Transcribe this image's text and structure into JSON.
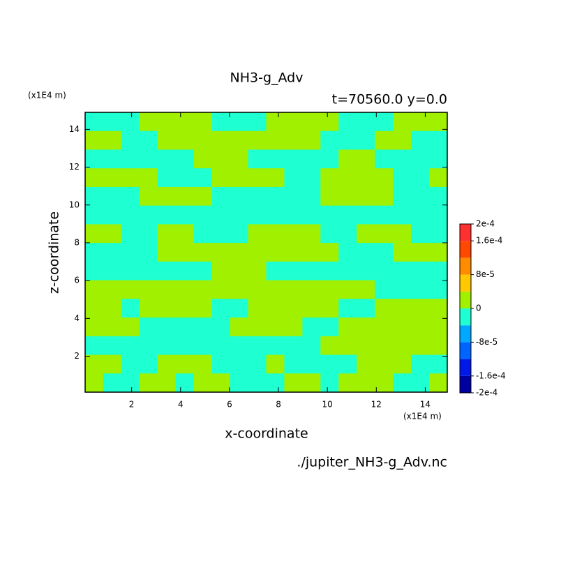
{
  "chart_data": {
    "type": "contour",
    "title": "NH3-g_Adv",
    "subtitle": "t=70560.0 y=0.0",
    "x_label": "x-coordinate",
    "y_label": "z-coordinate",
    "x_unit": "(x1E4 m)",
    "y_unit": "(x1E4 m)",
    "source": "./jupiter_NH3-g_Adv.nc",
    "xlim": [
      0.1,
      14.9
    ],
    "ylim": [
      0.1,
      14.9
    ],
    "xticks": [
      2,
      4,
      6,
      8,
      10,
      12,
      14
    ],
    "yticks": [
      2,
      4,
      6,
      8,
      10,
      12,
      14
    ],
    "z": [
      [
        -2e-05,
        -2e-05,
        -2e-05,
        2e-05,
        2e-05,
        2e-05,
        2e-05,
        -2e-05,
        -2e-05,
        -2e-05,
        2e-05,
        2e-05,
        2e-05,
        2e-05,
        -2e-05,
        -2e-05,
        -2e-05,
        2e-05,
        2e-05,
        2e-05
      ],
      [
        2e-05,
        2e-05,
        -2e-05,
        -2e-05,
        2e-05,
        2e-05,
        2e-05,
        2e-05,
        2e-05,
        2e-05,
        2e-05,
        2e-05,
        2e-05,
        -2e-05,
        -2e-05,
        -2e-05,
        2e-05,
        2e-05,
        -2e-05,
        -2e-05
      ],
      [
        -2e-05,
        -2e-05,
        -2e-05,
        -2e-05,
        -2e-05,
        -2e-05,
        2e-05,
        2e-05,
        2e-05,
        -2e-05,
        -2e-05,
        -2e-05,
        -2e-05,
        -2e-05,
        2e-05,
        2e-05,
        -2e-05,
        -2e-05,
        -2e-05,
        -2e-05
      ],
      [
        2e-05,
        2e-05,
        2e-05,
        2e-05,
        -2e-05,
        -2e-05,
        -2e-05,
        2e-05,
        2e-05,
        2e-05,
        2e-05,
        -2e-05,
        -2e-05,
        2e-05,
        2e-05,
        2e-05,
        2e-05,
        -2e-05,
        -2e-05,
        2e-05
      ],
      [
        -2e-05,
        -2e-05,
        -2e-05,
        2e-05,
        2e-05,
        2e-05,
        2e-05,
        -2e-05,
        -2e-05,
        -2e-05,
        -2e-05,
        -2e-05,
        -2e-05,
        2e-05,
        2e-05,
        2e-05,
        2e-05,
        -2e-05,
        -2e-05,
        -2e-05
      ],
      [
        -2e-05,
        -2e-05,
        -2e-05,
        -2e-05,
        -2e-05,
        -2e-05,
        -2e-05,
        -2e-05,
        -2e-05,
        -2e-05,
        -2e-05,
        -2e-05,
        -2e-05,
        -2e-05,
        -2e-05,
        -2e-05,
        -2e-05,
        -2e-05,
        -2e-05,
        -2e-05
      ],
      [
        2e-05,
        2e-05,
        -2e-05,
        -2e-05,
        2e-05,
        2e-05,
        -2e-05,
        -2e-05,
        -2e-05,
        2e-05,
        2e-05,
        2e-05,
        2e-05,
        -2e-05,
        -2e-05,
        2e-05,
        2e-05,
        2e-05,
        -2e-05,
        -2e-05
      ],
      [
        -2e-05,
        -2e-05,
        -2e-05,
        -2e-05,
        2e-05,
        2e-05,
        2e-05,
        2e-05,
        2e-05,
        2e-05,
        2e-05,
        2e-05,
        2e-05,
        2e-05,
        -2e-05,
        -2e-05,
        -2e-05,
        2e-05,
        2e-05,
        2e-05
      ],
      [
        -2e-05,
        -2e-05,
        -2e-05,
        -2e-05,
        -2e-05,
        -2e-05,
        -2e-05,
        2e-05,
        2e-05,
        2e-05,
        -2e-05,
        -2e-05,
        -2e-05,
        -2e-05,
        -2e-05,
        -2e-05,
        -2e-05,
        -2e-05,
        -2e-05,
        -2e-05
      ],
      [
        2e-05,
        2e-05,
        2e-05,
        2e-05,
        2e-05,
        2e-05,
        2e-05,
        2e-05,
        2e-05,
        2e-05,
        2e-05,
        2e-05,
        2e-05,
        2e-05,
        2e-05,
        2e-05,
        -2e-05,
        -2e-05,
        -2e-05,
        -2e-05
      ],
      [
        2e-05,
        2e-05,
        -2e-05,
        2e-05,
        2e-05,
        2e-05,
        2e-05,
        -2e-05,
        -2e-05,
        2e-05,
        2e-05,
        2e-05,
        2e-05,
        2e-05,
        -2e-05,
        -2e-05,
        2e-05,
        2e-05,
        2e-05,
        2e-05
      ],
      [
        2e-05,
        2e-05,
        2e-05,
        -2e-05,
        -2e-05,
        -2e-05,
        -2e-05,
        -2e-05,
        2e-05,
        2e-05,
        2e-05,
        2e-05,
        -2e-05,
        -2e-05,
        2e-05,
        2e-05,
        2e-05,
        2e-05,
        2e-05,
        2e-05
      ],
      [
        -2e-05,
        -2e-05,
        -2e-05,
        -2e-05,
        -2e-05,
        -2e-05,
        -2e-05,
        -2e-05,
        -2e-05,
        -2e-05,
        -2e-05,
        -2e-05,
        -2e-05,
        2e-05,
        2e-05,
        2e-05,
        2e-05,
        2e-05,
        2e-05,
        2e-05
      ],
      [
        2e-05,
        2e-05,
        -2e-05,
        -2e-05,
        2e-05,
        2e-05,
        2e-05,
        -2e-05,
        -2e-05,
        -2e-05,
        2e-05,
        -2e-05,
        -2e-05,
        -2e-05,
        -2e-05,
        2e-05,
        2e-05,
        2e-05,
        -2e-05,
        -2e-05
      ],
      [
        2e-05,
        -2e-05,
        -2e-05,
        2e-05,
        2e-05,
        -2e-05,
        2e-05,
        2e-05,
        -2e-05,
        -2e-05,
        -2e-05,
        2e-05,
        2e-05,
        -2e-05,
        2e-05,
        2e-05,
        2e-05,
        -2e-05,
        -2e-05,
        2e-05
      ]
    ],
    "colorbar": {
      "levels": [
        -0.0002,
        -0.00016,
        -0.00012,
        -8e-05,
        -4e-05,
        0,
        4e-05,
        8e-05,
        0.00012,
        0.00016,
        0.0002
      ],
      "colors": [
        "#0000a0",
        "#0018e8",
        "#0064ff",
        "#00a8ff",
        "#1effd2",
        "#a0f000",
        "#ffc800",
        "#ff8c00",
        "#ff4800",
        "#ff3030"
      ],
      "ticks": [
        {
          "value": -0.0002,
          "label": "-2e-4"
        },
        {
          "value": -0.00016,
          "label": "-1.6e-4"
        },
        {
          "value": -8e-05,
          "label": "-8e-5"
        },
        0,
        {
          "value": 8e-05,
          "label": "8e-5"
        },
        {
          "value": 0.00016,
          "label": "1.6e-4"
        },
        {
          "value": 0.0002,
          "label": "2e-4"
        }
      ]
    }
  }
}
